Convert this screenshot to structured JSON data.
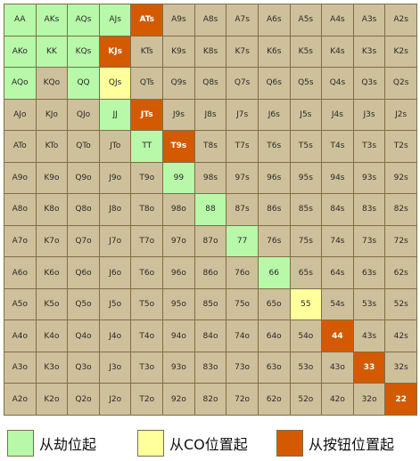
{
  "colors": {
    "default": "#cec09b",
    "early": "#b7f8a9",
    "co": "#ffff9c",
    "button": "#d45a02",
    "text_default": "#2a2a2a",
    "text_button": "#ffffff"
  },
  "rows": [
    [
      "AA",
      "AKs",
      "AQs",
      "AJs",
      "ATs",
      "A9s",
      "A8s",
      "A7s",
      "A6s",
      "A5s",
      "A4s",
      "A3s",
      "A2s"
    ],
    [
      "AKo",
      "KK",
      "KQs",
      "KJs",
      "KTs",
      "K9s",
      "K8s",
      "K7s",
      "K6s",
      "K5s",
      "K4s",
      "K3s",
      "K2s"
    ],
    [
      "AQo",
      "KQo",
      "QQ",
      "QJs",
      "QTs",
      "Q9s",
      "Q8s",
      "Q7s",
      "Q6s",
      "Q5s",
      "Q4s",
      "Q3s",
      "Q2s"
    ],
    [
      "AJo",
      "KJo",
      "QJo",
      "JJ",
      "JTs",
      "J9s",
      "J8s",
      "J7s",
      "J6s",
      "J5s",
      "J4s",
      "J3s",
      "J2s"
    ],
    [
      "ATo",
      "KTo",
      "QTo",
      "JTo",
      "TT",
      "T9s",
      "T8s",
      "T7s",
      "T6s",
      "T5s",
      "T4s",
      "T3s",
      "T2s"
    ],
    [
      "A9o",
      "K9o",
      "Q9o",
      "J9o",
      "T9o",
      "99",
      "98s",
      "97s",
      "96s",
      "95s",
      "94s",
      "93s",
      "92s"
    ],
    [
      "A8o",
      "K8o",
      "Q8o",
      "J8o",
      "T8o",
      "98o",
      "88",
      "87s",
      "86s",
      "85s",
      "84s",
      "83s",
      "82s"
    ],
    [
      "A7o",
      "K7o",
      "Q7o",
      "J7o",
      "T7o",
      "97o",
      "87o",
      "77",
      "76s",
      "75s",
      "74s",
      "73s",
      "72s"
    ],
    [
      "A6o",
      "K6o",
      "Q6o",
      "J6o",
      "T6o",
      "96o",
      "86o",
      "76o",
      "66",
      "65s",
      "64s",
      "63s",
      "62s"
    ],
    [
      "A5o",
      "K5o",
      "Q5o",
      "J5o",
      "T5o",
      "95o",
      "85o",
      "75o",
      "65o",
      "55",
      "54s",
      "53s",
      "52s"
    ],
    [
      "A4o",
      "K4o",
      "Q4o",
      "J4o",
      "T4o",
      "94o",
      "84o",
      "74o",
      "64o",
      "54o",
      "44",
      "43s",
      "42s"
    ],
    [
      "A3o",
      "K3o",
      "Q3o",
      "J3o",
      "T3o",
      "93o",
      "83o",
      "73o",
      "63o",
      "53o",
      "43o",
      "33",
      "32s"
    ],
    [
      "A2o",
      "K2o",
      "Q2o",
      "J2o",
      "T2o",
      "92o",
      "82o",
      "72o",
      "62o",
      "52o",
      "42o",
      "32o",
      "22"
    ]
  ],
  "highlights": {
    "early": [
      "AA",
      "AKs",
      "AQs",
      "AJs",
      "AKo",
      "KK",
      "KQs",
      "AQo",
      "QQ",
      "JJ",
      "TT",
      "99",
      "88",
      "77",
      "66"
    ],
    "co": [
      "QJs",
      "55"
    ],
    "button": [
      "ATs",
      "KJs",
      "JTs",
      "T9s",
      "44",
      "33",
      "22"
    ]
  },
  "legend": [
    {
      "key": "early",
      "label": "从劫位起"
    },
    {
      "key": "co",
      "label": "从CO位置起"
    },
    {
      "key": "button",
      "label": "从按钮位置起"
    }
  ]
}
